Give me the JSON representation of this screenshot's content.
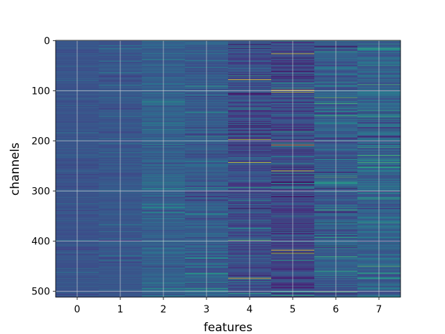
{
  "chart_data": {
    "type": "heatmap",
    "title": "",
    "xlabel": "features",
    "ylabel": "channels",
    "x_ticks": [
      "0",
      "1",
      "2",
      "3",
      "4",
      "5",
      "6",
      "7"
    ],
    "y_ticks": [
      "0",
      "100",
      "200",
      "300",
      "400",
      "500"
    ],
    "y_tick_values": [
      0,
      100,
      200,
      300,
      400,
      500
    ],
    "features": 8,
    "channels": 512,
    "xlim": [
      -0.5,
      7.5
    ],
    "ylim": [
      511.5,
      -0.5
    ],
    "grid": true,
    "colormap": "viridis",
    "column_mean_intensity": [
      0.26,
      0.27,
      0.31,
      0.3,
      0.24,
      0.22,
      0.3,
      0.32
    ],
    "column_spread": [
      0.04,
      0.05,
      0.07,
      0.09,
      0.11,
      0.12,
      0.12,
      0.12
    ],
    "bright_rows": [
      {
        "feature": 4,
        "channel": 78,
        "value": 1.0
      },
      {
        "feature": 4,
        "channel": 197,
        "value": 0.9
      },
      {
        "feature": 4,
        "channel": 243,
        "value": 0.95
      },
      {
        "feature": 4,
        "channel": 474,
        "value": 1.0
      },
      {
        "feature": 4,
        "channel": 398,
        "value": 0.75
      },
      {
        "feature": 5,
        "channel": 26,
        "value": 0.95
      },
      {
        "feature": 5,
        "channel": 99,
        "value": 1.0
      },
      {
        "feature": 5,
        "channel": 103,
        "value": 0.9
      },
      {
        "feature": 5,
        "channel": 208,
        "value": 0.95
      },
      {
        "feature": 5,
        "channel": 260,
        "value": 0.95
      },
      {
        "feature": 5,
        "channel": 418,
        "value": 1.0
      },
      {
        "feature": 5,
        "channel": 424,
        "value": 0.9
      },
      {
        "feature": 6,
        "channel": 282,
        "value": 0.6
      },
      {
        "feature": 6,
        "channel": 284,
        "value": 0.6
      },
      {
        "feature": 6,
        "channel": 114,
        "value": 0.75
      },
      {
        "feature": 7,
        "channel": 0,
        "value": 0.6
      },
      {
        "feature": 7,
        "channel": 314,
        "value": 0.6
      },
      {
        "feature": 7,
        "channel": 316,
        "value": 0.6
      },
      {
        "feature": 7,
        "channel": 243,
        "value": 0.7
      }
    ],
    "colors": {
      "background": "#ffffff",
      "grid": "#d9d9d9"
    }
  }
}
